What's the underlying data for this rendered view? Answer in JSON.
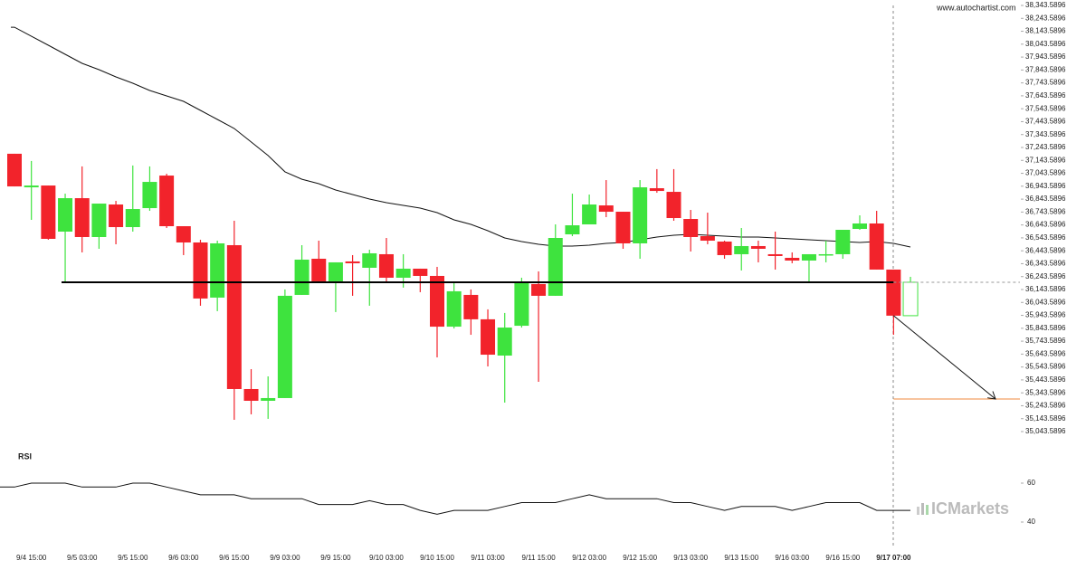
{
  "source": "www.autochartist.com",
  "brand": "ICMarkets",
  "chart_data": [
    {
      "type": "candlestick",
      "categories": [
        null,
        "9/4 15:00",
        null,
        null,
        "9/5 03:00",
        null,
        null,
        "9/5 15:00",
        null,
        null,
        "9/6 03:00",
        null,
        null,
        "9/6 15:00",
        null,
        null,
        "9/9 03:00",
        null,
        null,
        "9/9 15:00",
        null,
        null,
        "9/10 03:00",
        null,
        null,
        "9/10 15:00",
        null,
        null,
        "9/11 03:00",
        null,
        null,
        "9/11 15:00",
        null,
        null,
        "9/12 03:00",
        null,
        null,
        "9/12 15:00",
        null,
        null,
        "9/13 03:00",
        null,
        null,
        "9/13 15:00",
        null,
        null,
        "9/16 03:00",
        null,
        null,
        "9/16 15:00",
        null,
        null,
        "9/17 07:00",
        null
      ],
      "open": [
        37195,
        36935,
        36949,
        36592,
        36851,
        36550,
        36802,
        36627,
        36774,
        37026,
        36634,
        36508,
        36081,
        36487,
        35373,
        35282,
        35303,
        36102,
        36382,
        36207,
        36361,
        36312,
        36417,
        36235,
        36305,
        36249,
        35856,
        36102,
        35913,
        35632,
        35863,
        36186,
        36095,
        36571,
        36648,
        36795,
        36746,
        36501,
        36928,
        36900,
        36690,
        36557,
        36515,
        36417,
        36480,
        36417,
        36389,
        36368,
        36410,
        36417,
        36613,
        36655,
        36298,
        35941
      ],
      "high": [
        37195,
        37139,
        36949,
        36886,
        37097,
        36809,
        36830,
        37104,
        37097,
        37040,
        36634,
        36529,
        36522,
        36676,
        35527,
        35471,
        36144,
        36487,
        36522,
        36354,
        36410,
        36452,
        36543,
        36417,
        36305,
        36319,
        36193,
        36144,
        35990,
        35962,
        36235,
        36284,
        36648,
        36886,
        36879,
        36991,
        36746,
        36991,
        37076,
        37076,
        36760,
        36739,
        36522,
        36620,
        36522,
        36592,
        36431,
        36417,
        36522,
        36606,
        36718,
        36753,
        36298,
        36242
      ],
      "low": [
        36942,
        36683,
        36529,
        36200,
        36431,
        36459,
        36494,
        36592,
        36753,
        36620,
        36410,
        36018,
        35976,
        35135,
        35177,
        35142,
        35303,
        36102,
        36193,
        35969,
        36095,
        36018,
        36193,
        36158,
        36123,
        35618,
        35842,
        35793,
        35548,
        35268,
        35849,
        35429,
        36095,
        36557,
        36648,
        36704,
        36459,
        36382,
        36893,
        36676,
        36438,
        36494,
        36382,
        36291,
        36354,
        36298,
        36347,
        36200,
        36354,
        36382,
        36606,
        36298,
        35793,
        35941
      ],
      "close": [
        36942,
        36949,
        36536,
        36851,
        36550,
        36809,
        36627,
        36767,
        36977,
        36634,
        36508,
        36074,
        36501,
        35373,
        35282,
        35303,
        36095,
        36375,
        36207,
        36354,
        36347,
        36424,
        36235,
        36305,
        36249,
        35856,
        36130,
        35913,
        35639,
        35849,
        36193,
        36095,
        36543,
        36641,
        36802,
        36746,
        36501,
        36935,
        36907,
        36697,
        36550,
        36522,
        36410,
        36480,
        36459,
        36403,
        36368,
        36417,
        36417,
        36606,
        36655,
        36298,
        35941,
        36200
      ],
      "moving_average": [
        38175,
        38105,
        38035,
        37965,
        37895,
        37846,
        37790,
        37741,
        37685,
        37643,
        37601,
        37531,
        37461,
        37391,
        37286,
        37181,
        37055,
        36998,
        36963,
        36914,
        36879,
        36844,
        36816,
        36795,
        36774,
        36739,
        36683,
        36648,
        36599,
        36543,
        36515,
        36494,
        36480,
        36480,
        36487,
        36501,
        36508,
        36529,
        36550,
        36564,
        36571,
        36564,
        36557,
        36550,
        36550,
        36543,
        36536,
        36529,
        36522,
        36515,
        36508,
        36515,
        36501,
        36473
      ],
      "up_color": "#3ee33e",
      "down_color": "#f2232b",
      "ma_color": "#111111",
      "support": 36200,
      "target": 35296,
      "target_color": "#f08a3c",
      "ylim": [
        35043.5896,
        38343.5896
      ],
      "yticks": [
        {
          "value": 35043.5896,
          "label": "35,043.5896"
        },
        {
          "value": 35143.5896,
          "label": "35,143.5896"
        },
        {
          "value": 35243.5896,
          "label": "35,243.5896"
        },
        {
          "value": 35343.5896,
          "label": "35,343.5896"
        },
        {
          "value": 35443.5896,
          "label": "35,443.5896"
        },
        {
          "value": 35543.5896,
          "label": "35,543.5896"
        },
        {
          "value": 35643.5896,
          "label": "35,643.5896"
        },
        {
          "value": 35743.5896,
          "label": "35,743.5896"
        },
        {
          "value": 35843.5896,
          "label": "35,843.5896"
        },
        {
          "value": 35943.5896,
          "label": "35,943.5896"
        },
        {
          "value": 36043.5896,
          "label": "36,043.5896"
        },
        {
          "value": 36143.5896,
          "label": "36,143.5896"
        },
        {
          "value": 36243.5896,
          "label": "36,243.5896"
        },
        {
          "value": 36343.5896,
          "label": "36,343.5896"
        },
        {
          "value": 36443.5896,
          "label": "36,443.5896"
        },
        {
          "value": 36543.5896,
          "label": "36,543.5896"
        },
        {
          "value": 36643.5896,
          "label": "36,643.5896"
        },
        {
          "value": 36743.5896,
          "label": "36,743.5896"
        },
        {
          "value": 36843.5896,
          "label": "36,843.5896"
        },
        {
          "value": 36943.5896,
          "label": "36,943.5896"
        },
        {
          "value": 37043.5896,
          "label": "37,043.5896"
        },
        {
          "value": 37143.5896,
          "label": "37,143.5896"
        },
        {
          "value": 37243.5896,
          "label": "37,243.5896"
        },
        {
          "value": 37343.5896,
          "label": "37,343.5896"
        },
        {
          "value": 37443.5896,
          "label": "37,443.5896"
        },
        {
          "value": 37543.5896,
          "label": "37,543.5896"
        },
        {
          "value": 37643.5896,
          "label": "37,643.5896"
        },
        {
          "value": 37743.5896,
          "label": "37,743.5896"
        },
        {
          "value": 37843.5896,
          "label": "37,843.5896"
        },
        {
          "value": 37943.5896,
          "label": "37,943.5896"
        },
        {
          "value": 38043.5896,
          "label": "38,043.5896"
        },
        {
          "value": 38143.5896,
          "label": "38,143.5896"
        },
        {
          "value": 38243.5896,
          "label": "38,243.5896"
        },
        {
          "value": 38343.5896,
          "label": "38,343.5896"
        }
      ]
    },
    {
      "type": "line",
      "title": "RSI",
      "color": "#111111",
      "values": [
        58,
        60,
        60,
        60,
        58,
        58,
        58,
        60,
        60,
        58,
        56,
        54,
        54,
        54,
        52,
        52,
        52,
        52,
        49,
        49,
        49,
        51,
        49,
        49,
        46,
        44,
        46,
        46,
        46,
        48,
        50,
        50,
        50,
        52,
        54,
        52,
        52,
        52,
        52,
        50,
        50,
        48,
        46,
        48,
        48,
        48,
        46,
        48,
        50,
        50,
        50,
        46,
        46,
        46
      ],
      "ylim": [
        30,
        80
      ],
      "yticks": [
        40,
        60
      ]
    }
  ]
}
